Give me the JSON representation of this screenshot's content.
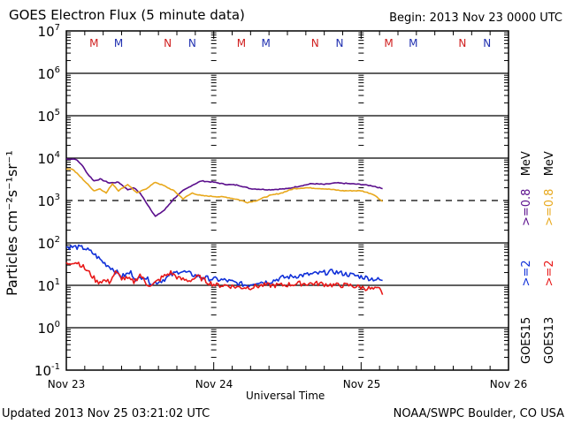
{
  "header": {
    "title": "GOES Electron Flux (5 minute data)",
    "begin": "Begin: 2013 Nov 23 0000 UTC"
  },
  "footer": {
    "updated": "Updated 2013 Nov 25 03:21:02 UTC",
    "credit": "NOAA/SWPC Boulder, CO USA"
  },
  "colors": {
    "goes15_08": "#5a0e8c",
    "goes13_08": "#e8a81c",
    "goes15_2": "#1030d8",
    "goes13_2": "#e81818",
    "marker_red": "#d02020",
    "marker_blue": "#2030b0"
  },
  "chart_data": {
    "type": "line",
    "title": "GOES Electron Flux (5 minute data)",
    "xlabel": "Universal Time",
    "ylabel": "Particles cm⁻²s⁻¹sr⁻¹",
    "yscale": "log",
    "ylim": [
      0.1,
      10000000
    ],
    "xlim_hours": [
      0,
      72
    ],
    "x_tick_labels": [
      "Nov 23",
      "Nov 24",
      "Nov 25",
      "Nov 26"
    ],
    "y_tick_labels": [
      {
        "base": "10",
        "exp": "7"
      },
      {
        "base": "10",
        "exp": "6"
      },
      {
        "base": "10",
        "exp": "5"
      },
      {
        "base": "10",
        "exp": "4"
      },
      {
        "base": "10",
        "exp": "3"
      },
      {
        "base": "10",
        "exp": "2"
      },
      {
        "base": "10",
        "exp": "1"
      },
      {
        "base": "10",
        "exp": "0"
      },
      {
        "base": "10",
        "exp": "-1"
      }
    ],
    "grid": true,
    "threshold_line": {
      "value": 1000,
      "style": "dashed"
    },
    "top_markers": [
      {
        "label": "M",
        "hour": 4.5,
        "color": "red"
      },
      {
        "label": "M",
        "hour": 8.5,
        "color": "blue"
      },
      {
        "label": "N",
        "hour": 16.5,
        "color": "red"
      },
      {
        "label": "N",
        "hour": 20.5,
        "color": "blue"
      },
      {
        "label": "M",
        "hour": 28.5,
        "color": "red"
      },
      {
        "label": "M",
        "hour": 32.5,
        "color": "blue"
      },
      {
        "label": "N",
        "hour": 40.5,
        "color": "red"
      },
      {
        "label": "N",
        "hour": 44.5,
        "color": "blue"
      },
      {
        "label": "M",
        "hour": 52.5,
        "color": "red"
      },
      {
        "label": "M",
        "hour": 56.5,
        "color": "blue"
      },
      {
        "label": "N",
        "hour": 64.5,
        "color": "red"
      },
      {
        "label": "N",
        "hour": 68.5,
        "color": "blue"
      }
    ],
    "legend": [
      {
        "satellite": "GOES15",
        "items": [
          {
            "text": ">=2",
            "color": "blue"
          },
          {
            "text": ">=0.8",
            "color": "purple"
          },
          {
            "text": "MeV",
            "color": "black"
          }
        ]
      },
      {
        "satellite": "GOES13",
        "items": [
          {
            "text": ">=2",
            "color": "red"
          },
          {
            "text": ">=0.8",
            "color": "gold"
          },
          {
            "text": "MeV",
            "color": "black"
          }
        ]
      }
    ],
    "legend_placement": "right",
    "series": [
      {
        "name": "GOES15 >=0.8 MeV",
        "color_key": "goes15_08",
        "hours": [
          0,
          1.5,
          2.5,
          3.5,
          4.5,
          5.5,
          7,
          8.5,
          10,
          11,
          12,
          13,
          14.5,
          16,
          17.5,
          19,
          20.5,
          22,
          24,
          26,
          28,
          30,
          33,
          36,
          38,
          40,
          42,
          44,
          46,
          48,
          50,
          51.5
        ],
        "values": [
          9500,
          9500,
          7000,
          4200,
          2900,
          3200,
          2600,
          2700,
          1800,
          2000,
          1500,
          900,
          420,
          600,
          1100,
          1700,
          2300,
          2900,
          2700,
          2400,
          2300,
          1900,
          1800,
          1900,
          2200,
          2500,
          2400,
          2600,
          2500,
          2400,
          2200,
          1900
        ]
      },
      {
        "name": "GOES13 >=0.8 MeV",
        "color_key": "goes13_08",
        "hours": [
          0,
          1,
          2,
          3.5,
          4.5,
          5.5,
          6.5,
          7.5,
          8.5,
          10,
          11.5,
          13,
          14.5,
          16,
          17.5,
          19,
          20.5,
          22,
          24,
          26,
          28,
          29.5,
          31,
          33,
          35,
          37,
          39,
          42,
          45,
          48,
          50,
          51.5
        ],
        "values": [
          5600,
          5500,
          4000,
          2400,
          1700,
          1900,
          1500,
          2500,
          1700,
          2400,
          1500,
          1900,
          2700,
          2200,
          1700,
          1100,
          1500,
          1300,
          1250,
          1200,
          1050,
          900,
          1000,
          1300,
          1500,
          1900,
          2000,
          1900,
          1700,
          1700,
          1400,
          950
        ]
      },
      {
        "name": "GOES15 >=2 MeV",
        "color_key": "goes15_2",
        "hours": [
          0,
          1.5,
          3,
          4.5,
          6,
          7.5,
          9,
          10.5,
          11.5,
          12.5,
          14,
          15.5,
          17,
          18.5,
          19.5,
          21,
          22.5,
          24,
          26,
          28,
          29.5,
          31,
          33,
          35,
          38,
          41,
          43.5,
          45,
          47,
          49,
          51.5
        ],
        "values": [
          80,
          80,
          75,
          55,
          35,
          25,
          16,
          20,
          13,
          17,
          11,
          13,
          17,
          22,
          20,
          17,
          15,
          14,
          13,
          11,
          10,
          12,
          12,
          15,
          17,
          19,
          21,
          19,
          17,
          15,
          13
        ]
      },
      {
        "name": "GOES13 >=2 MeV",
        "color_key": "goes13_2",
        "hours": [
          0,
          1,
          2,
          3,
          4,
          5,
          6,
          7,
          8,
          9,
          10,
          11,
          12,
          13,
          14,
          15.5,
          17,
          18.5,
          20,
          21.5,
          23,
          24.5,
          26,
          28,
          30,
          32,
          35,
          38,
          41,
          44,
          46,
          48,
          50,
          51,
          51.5
        ],
        "values": [
          32,
          36,
          34,
          25,
          18,
          12,
          13,
          12,
          20,
          15,
          14,
          12,
          18,
          11,
          10,
          15,
          20,
          14,
          13,
          16,
          12,
          10,
          10,
          9,
          9,
          10,
          10,
          11,
          11,
          10,
          10,
          9,
          8,
          8,
          6
        ]
      }
    ]
  }
}
